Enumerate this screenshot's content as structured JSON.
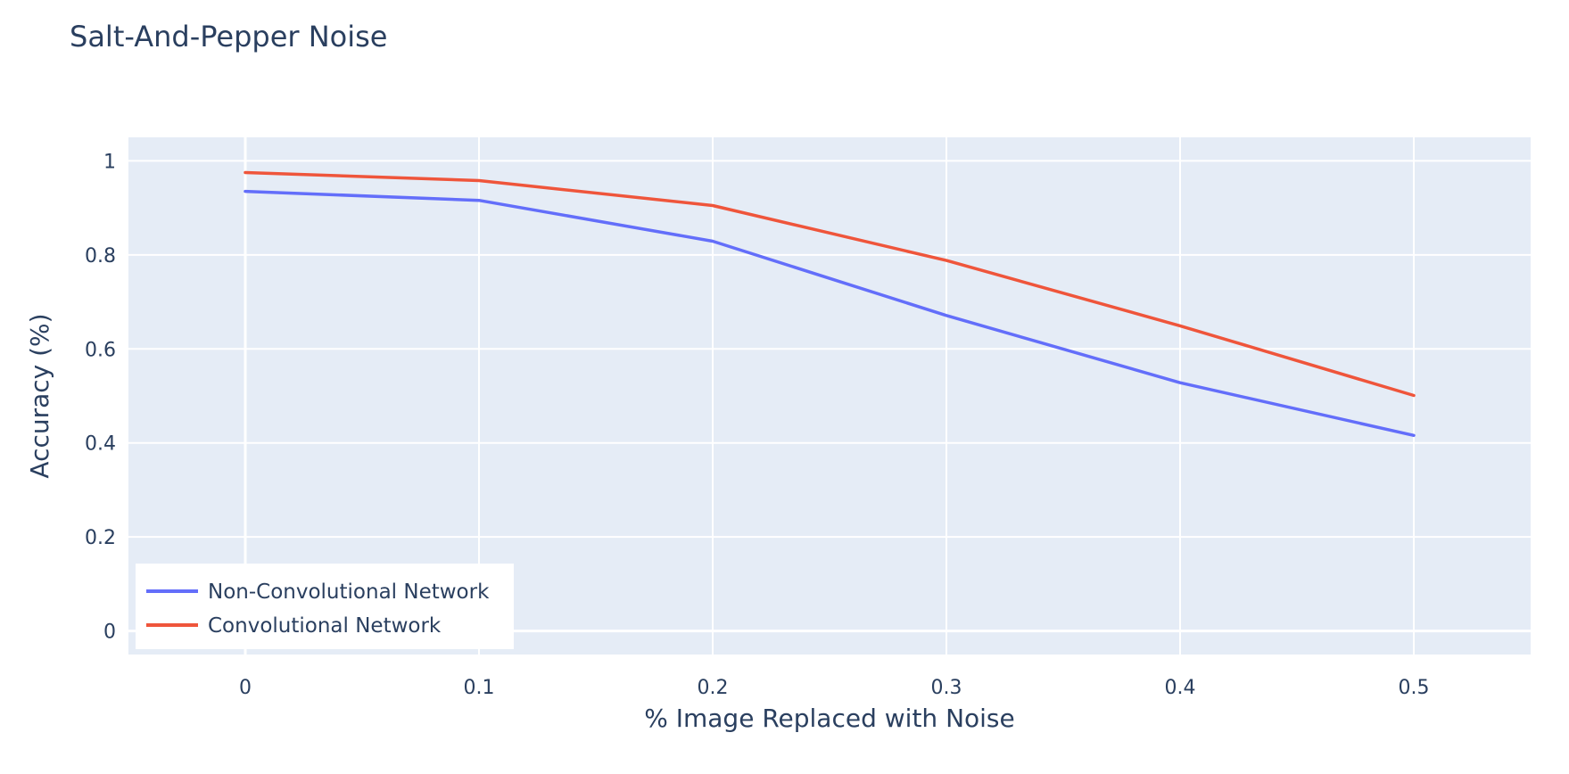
{
  "chart_data": {
    "type": "line",
    "title": "Salt-And-Pepper Noise",
    "xlabel": "% Image Replaced with Noise",
    "ylabel": "Accuracy (%)",
    "x": [
      0,
      0.1,
      0.2,
      0.3,
      0.4,
      0.5
    ],
    "xlim": [
      -0.05,
      0.55
    ],
    "ylim": [
      -0.05,
      1.05
    ],
    "xticks": [
      0,
      0.1,
      0.2,
      0.3,
      0.4,
      0.5
    ],
    "xtick_labels": [
      "0",
      "0.1",
      "0.2",
      "0.3",
      "0.4",
      "0.5"
    ],
    "yticks": [
      0,
      0.2,
      0.4,
      0.6,
      0.8,
      1
    ],
    "ytick_labels": [
      "0",
      "0.2",
      "0.4",
      "0.6",
      "0.8",
      "1"
    ],
    "grid": true,
    "legend_position": "bottom-left",
    "plot_background": "#e5ecf6",
    "series": [
      {
        "name": "Non-Convolutional Network",
        "color": "#636efa",
        "values": [
          0.935,
          0.916,
          0.829,
          0.671,
          0.528,
          0.416
        ]
      },
      {
        "name": "Convolutional Network",
        "color": "#ef553b",
        "values": [
          0.975,
          0.958,
          0.905,
          0.788,
          0.649,
          0.501
        ]
      }
    ]
  }
}
